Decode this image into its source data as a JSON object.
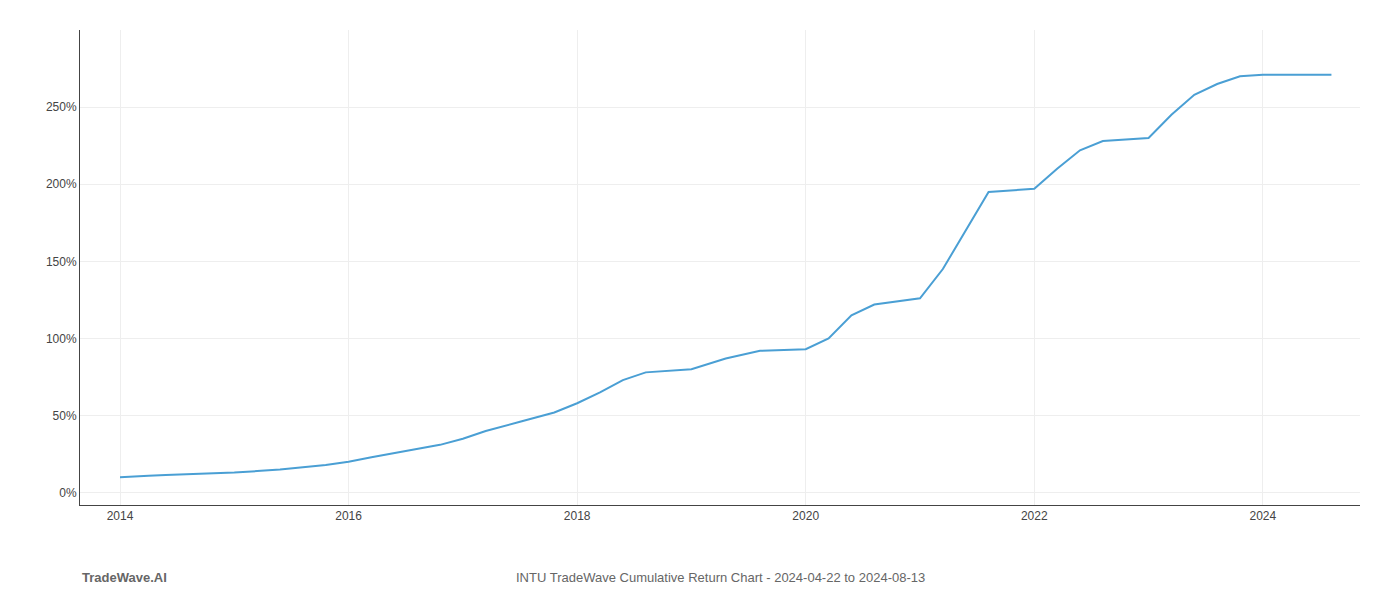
{
  "chart_data": {
    "type": "line",
    "title": "INTU TradeWave Cumulative Return Chart - 2024-04-22 to 2024-08-13",
    "annotations": [
      "TradeWave.AI"
    ],
    "color": "#4a9fd4",
    "x": [
      2014.0,
      2014.1,
      2014.25,
      2014.4,
      2014.6,
      2014.8,
      2015.0,
      2015.2,
      2015.4,
      2015.6,
      2015.8,
      2016.0,
      2016.2,
      2016.5,
      2016.8,
      2017.0,
      2017.2,
      2017.5,
      2017.8,
      2018.0,
      2018.2,
      2018.4,
      2018.6,
      2019.0,
      2019.3,
      2019.6,
      2020.0,
      2020.2,
      2020.4,
      2020.6,
      2020.8,
      2021.0,
      2021.2,
      2021.4,
      2021.6,
      2022.0,
      2022.2,
      2022.4,
      2022.6,
      2023.0,
      2023.2,
      2023.4,
      2023.6,
      2023.8,
      2024.0,
      2024.3,
      2024.6
    ],
    "values": [
      10,
      10.5,
      11,
      11.5,
      12,
      12.5,
      13,
      14,
      15,
      16.5,
      18,
      20,
      23,
      27,
      31,
      35,
      40,
      46,
      52,
      58,
      65,
      73,
      78,
      80,
      87,
      92,
      93,
      100,
      115,
      122,
      124,
      126,
      145,
      170,
      195,
      197,
      210,
      222,
      228,
      230,
      245,
      258,
      265,
      270,
      271,
      271,
      271
    ],
    "xlim": [
      2013.65,
      2024.85
    ],
    "ylim": [
      -8,
      300
    ],
    "xticks": [
      2014,
      2016,
      2018,
      2020,
      2022,
      2024
    ],
    "yticks": [
      {
        "value": 0,
        "label": "0%"
      },
      {
        "value": 50,
        "label": "50%"
      },
      {
        "value": 100,
        "label": "100%"
      },
      {
        "value": 150,
        "label": "150%"
      },
      {
        "value": 200,
        "label": "200%"
      },
      {
        "value": 250,
        "label": "250%"
      }
    ],
    "grid": true
  }
}
